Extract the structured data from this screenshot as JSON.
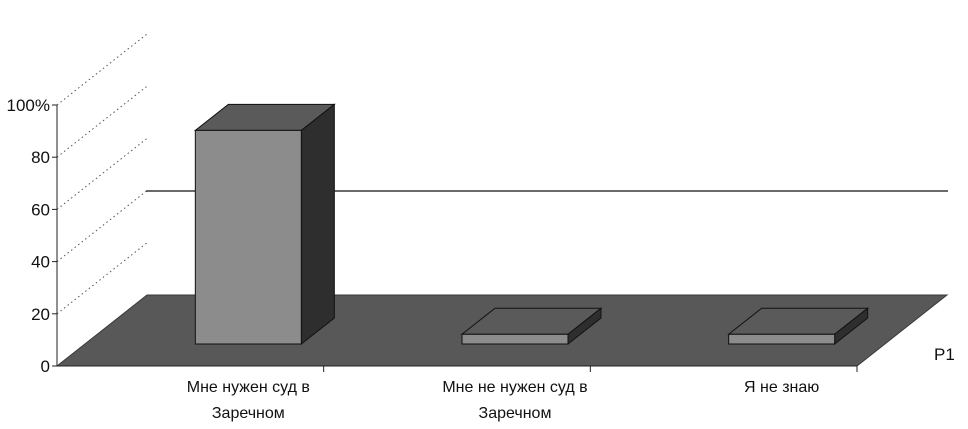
{
  "chart_data": {
    "type": "bar",
    "title": "",
    "categories": [
      [
        "Мне нужен суд в",
        "Заречном"
      ],
      [
        "Мне не нужен суд в",
        "Заречном"
      ],
      [
        "Я не знаю"
      ]
    ],
    "series": [
      {
        "name": "Р1",
        "values": [
          88,
          4,
          4
        ]
      }
    ],
    "y_ticks": [
      "0",
      "20",
      "40",
      "60",
      "80",
      "100%"
    ],
    "ylim": [
      0,
      100
    ],
    "grid": false,
    "three_d": true,
    "legend_position": "right",
    "colors": {
      "bar_front": "#8c8c8c",
      "bar_top": "#5a5a5a",
      "bar_side": "#2e2e2e",
      "floor": "#585858",
      "axis": "#222222"
    }
  }
}
